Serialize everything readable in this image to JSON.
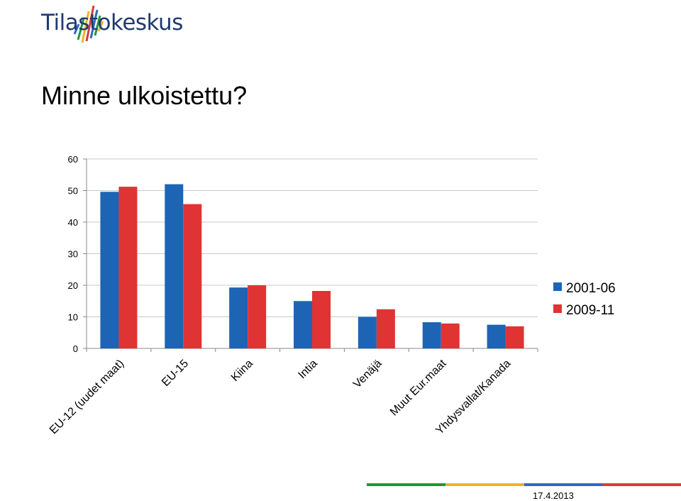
{
  "header": {
    "logo_text": "Tilastokeskus",
    "slide_title": "Minne ulkoistettu?"
  },
  "footer": {
    "date": "17.4.2013",
    "stripe_colors": [
      "#1a9a3a",
      "#f0b323",
      "#2a6cc4",
      "#d93b3b"
    ]
  },
  "chart_data": {
    "type": "bar",
    "title": "",
    "xlabel": "",
    "ylabel": "",
    "ylim": [
      0,
      60
    ],
    "yticks": [
      0,
      10,
      20,
      30,
      40,
      50,
      60
    ],
    "grid": true,
    "legend_position": "right",
    "categories": [
      "EU-12 (uudet maat)",
      "EU-15",
      "Kiina",
      "Intia",
      "Venäjä",
      "Muut Eur.maat",
      "Yhdysvallat/Kanada"
    ],
    "series": [
      {
        "name": "2001-06",
        "color": "#1e64b4",
        "values": [
          49.6,
          52.0,
          19.3,
          15.0,
          10.0,
          8.3,
          7.5
        ]
      },
      {
        "name": "2009-11",
        "color": "#e03333",
        "values": [
          51.2,
          45.7,
          20.0,
          18.2,
          12.4,
          7.9,
          7.0
        ]
      }
    ]
  }
}
